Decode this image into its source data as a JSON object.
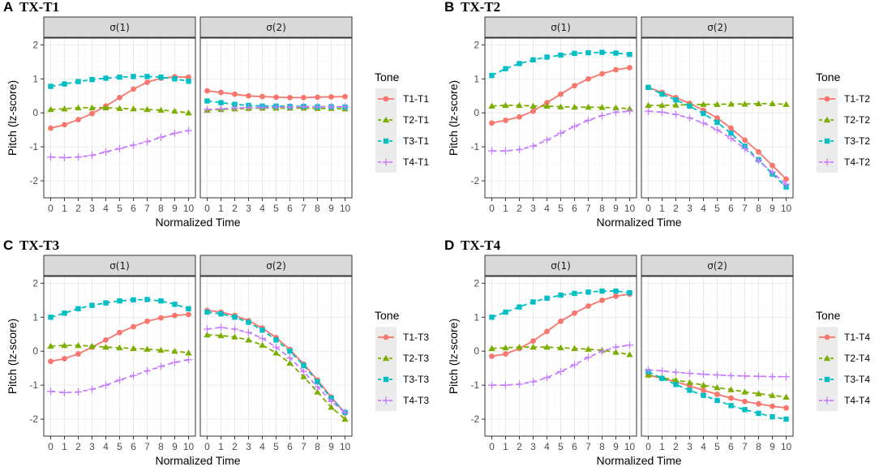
{
  "figure": {
    "xlabel": "Normalized Time",
    "ylabel": "Pitch (lz-score)",
    "legend_title": "Tone",
    "facets": [
      "σ(1)",
      "σ(2)"
    ],
    "xlim": [
      0,
      10
    ],
    "ylim": [
      -2.5,
      2.2
    ],
    "x_ticks": [
      0,
      1,
      2,
      3,
      4,
      5,
      6,
      7,
      8,
      9,
      10
    ],
    "y_ticks": [
      -2,
      -1,
      0,
      1,
      2
    ],
    "series_styles": [
      {
        "color": "#F8766D",
        "marker": "circle",
        "dash": "solid"
      },
      {
        "color": "#7CAE00",
        "marker": "triangle",
        "dash": "dashed"
      },
      {
        "color": "#00BFC4",
        "marker": "square",
        "dash": "dashed"
      },
      {
        "color": "#C77CFF",
        "marker": "plus",
        "dash": "dashed"
      }
    ]
  },
  "chart_data": [
    {
      "type": "line",
      "letter": "A",
      "title": "TX-T1",
      "legend_position": "right",
      "x": [
        0,
        1,
        2,
        3,
        4,
        5,
        6,
        7,
        8,
        9,
        10
      ],
      "facets": [
        {
          "label": "σ(1)",
          "series": [
            {
              "name": "T1-T1",
              "values": [
                -0.45,
                -0.35,
                -0.2,
                -0.02,
                0.2,
                0.45,
                0.7,
                0.9,
                1.02,
                1.06,
                1.05
              ]
            },
            {
              "name": "T2-T1",
              "values": [
                0.1,
                0.12,
                0.15,
                0.15,
                0.15,
                0.13,
                0.12,
                0.1,
                0.08,
                0.05,
                0.0
              ]
            },
            {
              "name": "T3-T1",
              "values": [
                0.78,
                0.85,
                0.92,
                0.98,
                1.02,
                1.05,
                1.07,
                1.07,
                1.05,
                1.0,
                0.93
              ]
            },
            {
              "name": "T4-T1",
              "values": [
                -1.3,
                -1.32,
                -1.3,
                -1.25,
                -1.15,
                -1.05,
                -0.95,
                -0.85,
                -0.72,
                -0.6,
                -0.52
              ]
            }
          ]
        },
        {
          "label": "σ(2)",
          "series": [
            {
              "name": "T1-T1",
              "values": [
                0.65,
                0.6,
                0.55,
                0.5,
                0.48,
                0.46,
                0.45,
                0.45,
                0.46,
                0.47,
                0.48
              ]
            },
            {
              "name": "T2-T1",
              "values": [
                0.08,
                0.1,
                0.12,
                0.13,
                0.14,
                0.14,
                0.14,
                0.14,
                0.13,
                0.13,
                0.12
              ]
            },
            {
              "name": "T3-T1",
              "values": [
                0.35,
                0.3,
                0.25,
                0.22,
                0.2,
                0.2,
                0.19,
                0.19,
                0.18,
                0.18,
                0.17
              ]
            },
            {
              "name": "T4-T1",
              "values": [
                0.1,
                0.12,
                0.14,
                0.15,
                0.16,
                0.17,
                0.17,
                0.18,
                0.18,
                0.18,
                0.18
              ]
            }
          ]
        }
      ]
    },
    {
      "type": "line",
      "letter": "B",
      "title": "TX-T2",
      "legend_position": "right",
      "x": [
        0,
        1,
        2,
        3,
        4,
        5,
        6,
        7,
        8,
        9,
        10
      ],
      "facets": [
        {
          "label": "σ(1)",
          "series": [
            {
              "name": "T1-T2",
              "values": [
                -0.3,
                -0.22,
                -0.12,
                0.05,
                0.3,
                0.55,
                0.8,
                1.0,
                1.15,
                1.27,
                1.33
              ]
            },
            {
              "name": "T2-T2",
              "values": [
                0.2,
                0.22,
                0.22,
                0.2,
                0.2,
                0.18,
                0.17,
                0.17,
                0.16,
                0.15,
                0.12
              ]
            },
            {
              "name": "T3-T2",
              "values": [
                1.1,
                1.3,
                1.45,
                1.56,
                1.64,
                1.7,
                1.75,
                1.77,
                1.78,
                1.76,
                1.72
              ]
            },
            {
              "name": "T4-T2",
              "values": [
                -1.12,
                -1.12,
                -1.08,
                -0.98,
                -0.8,
                -0.6,
                -0.4,
                -0.22,
                -0.08,
                0.02,
                0.05
              ]
            }
          ]
        },
        {
          "label": "σ(2)",
          "series": [
            {
              "name": "T1-T2",
              "values": [
                0.75,
                0.6,
                0.45,
                0.28,
                0.08,
                -0.15,
                -0.45,
                -0.8,
                -1.15,
                -1.55,
                -1.95
              ]
            },
            {
              "name": "T2-T2",
              "values": [
                0.22,
                0.22,
                0.23,
                0.24,
                0.25,
                0.25,
                0.26,
                0.26,
                0.27,
                0.27,
                0.25
              ]
            },
            {
              "name": "T3-T2",
              "values": [
                0.75,
                0.55,
                0.38,
                0.2,
                -0.02,
                -0.28,
                -0.6,
                -0.98,
                -1.38,
                -1.8,
                -2.18
              ]
            },
            {
              "name": "T4-T2",
              "values": [
                0.05,
                0.02,
                -0.05,
                -0.15,
                -0.3,
                -0.5,
                -0.75,
                -1.05,
                -1.4,
                -1.75,
                -2.1
              ]
            }
          ]
        }
      ]
    },
    {
      "type": "line",
      "letter": "C",
      "title": "TX-T3",
      "legend_position": "right",
      "x": [
        0,
        1,
        2,
        3,
        4,
        5,
        6,
        7,
        8,
        9,
        10
      ],
      "facets": [
        {
          "label": "σ(1)",
          "series": [
            {
              "name": "T1-T3",
              "values": [
                -0.3,
                -0.22,
                -0.08,
                0.12,
                0.33,
                0.55,
                0.72,
                0.88,
                0.98,
                1.05,
                1.08
              ]
            },
            {
              "name": "T2-T3",
              "values": [
                0.15,
                0.17,
                0.17,
                0.15,
                0.12,
                0.1,
                0.08,
                0.06,
                0.03,
                0.0,
                -0.05
              ]
            },
            {
              "name": "T3-T3",
              "values": [
                1.0,
                1.12,
                1.25,
                1.35,
                1.42,
                1.48,
                1.51,
                1.52,
                1.48,
                1.38,
                1.25
              ]
            },
            {
              "name": "T4-T3",
              "values": [
                -1.18,
                -1.22,
                -1.2,
                -1.12,
                -1.0,
                -0.85,
                -0.72,
                -0.58,
                -0.45,
                -0.33,
                -0.25
              ]
            }
          ]
        },
        {
          "label": "σ(2)",
          "series": [
            {
              "name": "T1-T3",
              "values": [
                1.2,
                1.15,
                1.05,
                0.9,
                0.68,
                0.4,
                0.05,
                -0.38,
                -0.85,
                -1.35,
                -1.82
              ]
            },
            {
              "name": "T2-T3",
              "values": [
                0.48,
                0.46,
                0.42,
                0.33,
                0.18,
                -0.05,
                -0.35,
                -0.75,
                -1.2,
                -1.65,
                -2.0
              ]
            },
            {
              "name": "T3-T3",
              "values": [
                1.15,
                1.1,
                1.0,
                0.85,
                0.62,
                0.33,
                0.0,
                -0.42,
                -0.9,
                -1.38,
                -1.8
              ]
            },
            {
              "name": "T4-T3",
              "values": [
                0.65,
                0.7,
                0.65,
                0.55,
                0.38,
                0.12,
                -0.2,
                -0.6,
                -1.05,
                -1.48,
                -1.8
              ]
            }
          ]
        }
      ]
    },
    {
      "type": "line",
      "letter": "D",
      "title": "TX-T4",
      "legend_position": "right",
      "x": [
        0,
        1,
        2,
        3,
        4,
        5,
        6,
        7,
        8,
        9,
        10
      ],
      "facets": [
        {
          "label": "σ(1)",
          "series": [
            {
              "name": "T1-T4",
              "values": [
                -0.15,
                -0.08,
                0.08,
                0.3,
                0.58,
                0.88,
                1.12,
                1.33,
                1.5,
                1.62,
                1.68
              ]
            },
            {
              "name": "T2-T4",
              "values": [
                0.08,
                0.1,
                0.12,
                0.12,
                0.12,
                0.1,
                0.08,
                0.06,
                0.03,
                -0.03,
                -0.1
              ]
            },
            {
              "name": "T3-T4",
              "values": [
                1.0,
                1.15,
                1.3,
                1.45,
                1.56,
                1.65,
                1.7,
                1.74,
                1.77,
                1.77,
                1.72
              ]
            },
            {
              "name": "T4-T4",
              "values": [
                -1.0,
                -1.0,
                -0.97,
                -0.9,
                -0.78,
                -0.6,
                -0.4,
                -0.18,
                0.0,
                0.12,
                0.18
              ]
            }
          ]
        },
        {
          "label": "σ(2)",
          "series": [
            {
              "name": "T1-T4",
              "values": [
                -0.7,
                -0.8,
                -0.9,
                -1.02,
                -1.15,
                -1.27,
                -1.38,
                -1.48,
                -1.55,
                -1.62,
                -1.67
              ]
            },
            {
              "name": "T2-T4",
              "values": [
                -0.7,
                -0.78,
                -0.85,
                -0.92,
                -1.0,
                -1.07,
                -1.13,
                -1.2,
                -1.25,
                -1.3,
                -1.35
              ]
            },
            {
              "name": "T3-T4",
              "values": [
                -0.6,
                -0.8,
                -0.98,
                -1.15,
                -1.3,
                -1.45,
                -1.6,
                -1.72,
                -1.83,
                -1.93,
                -2.0
              ]
            },
            {
              "name": "T4-T4",
              "values": [
                -0.55,
                -0.58,
                -0.62,
                -0.65,
                -0.68,
                -0.7,
                -0.72,
                -0.73,
                -0.74,
                -0.75,
                -0.75
              ]
            }
          ]
        }
      ]
    }
  ]
}
